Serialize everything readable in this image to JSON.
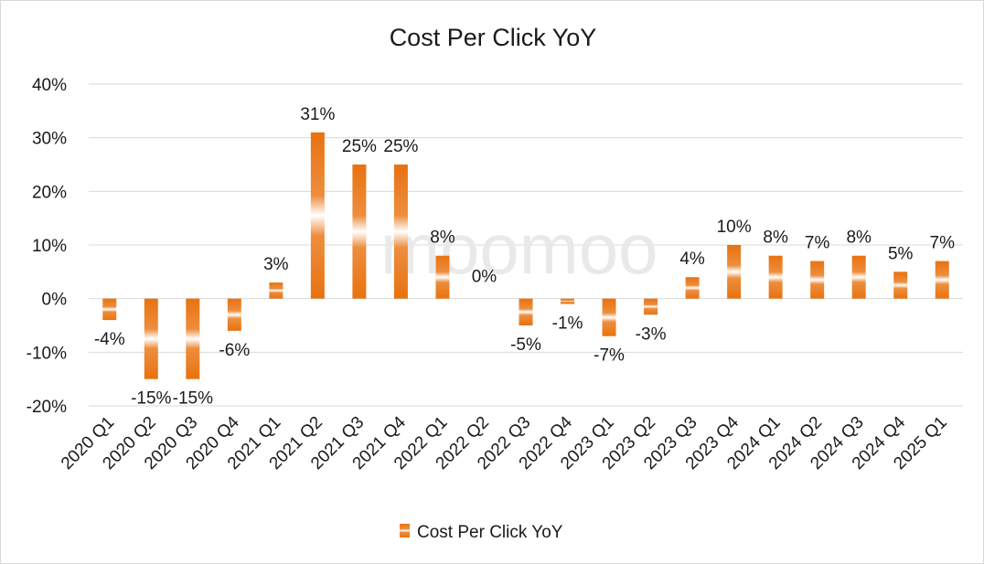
{
  "chart_data": {
    "type": "bar",
    "title": "Cost Per Click YoY",
    "categories": [
      "2020 Q1",
      "2020 Q2",
      "2020 Q3",
      "2020 Q4",
      "2021 Q1",
      "2021 Q2",
      "2021 Q3",
      "2021 Q4",
      "2022 Q1",
      "2022 Q2",
      "2022 Q3",
      "2022 Q4",
      "2023 Q1",
      "2023 Q2",
      "2023 Q3",
      "2023 Q4",
      "2024 Q1",
      "2024 Q2",
      "2024 Q3",
      "2024 Q4",
      "2025 Q1"
    ],
    "series": [
      {
        "name": "Cost Per Click YoY",
        "values": [
          -4,
          -15,
          -15,
          -6,
          3,
          31,
          25,
          25,
          8,
          0,
          -5,
          -1,
          -7,
          -3,
          4,
          10,
          8,
          7,
          8,
          5,
          7
        ],
        "labels": [
          "-4%",
          "-15%",
          "-15%",
          "-6%",
          "3%",
          "31%",
          "25%",
          "25%",
          "8%",
          "0%",
          "-5%",
          "-1%",
          "-7%",
          "-3%",
          "4%",
          "10%",
          "8%",
          "7%",
          "8%",
          "5%",
          "7%"
        ]
      }
    ],
    "ylim": [
      -20,
      40
    ],
    "yticks": [
      -20,
      -10,
      0,
      10,
      20,
      30,
      40
    ],
    "ytick_labels": [
      "-20%",
      "-10%",
      "0%",
      "10%",
      "20%",
      "30%",
      "40%"
    ],
    "grid": true,
    "legend_position": "bottom",
    "color": "#E8720F"
  },
  "watermark": "moomoo"
}
